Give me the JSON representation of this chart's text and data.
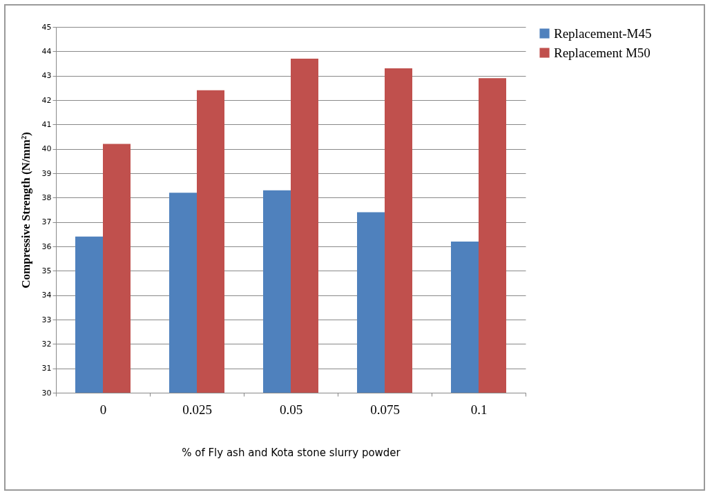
{
  "chart_data": {
    "type": "bar",
    "xlabel": "% of Fly ash and Kota stone slurry powder",
    "ylabel": "Compressive Strength  (N/mm²)",
    "categories": [
      "0",
      "0.025",
      "0.05",
      "0.075",
      "0.1"
    ],
    "series": [
      {
        "name": "Replacement-M45",
        "color": "#4f81bd",
        "values": [
          36.4,
          38.2,
          38.3,
          37.4,
          36.2
        ]
      },
      {
        "name": "Replacement M50",
        "color": "#c0504d",
        "values": [
          40.2,
          42.4,
          43.7,
          43.3,
          42.9
        ]
      }
    ],
    "ylim": [
      30,
      45
    ],
    "yticks": [
      30,
      31,
      32,
      33,
      34,
      35,
      36,
      37,
      38,
      39,
      40,
      41,
      42,
      43,
      44,
      45
    ],
    "grid": "y",
    "legend": "right"
  }
}
